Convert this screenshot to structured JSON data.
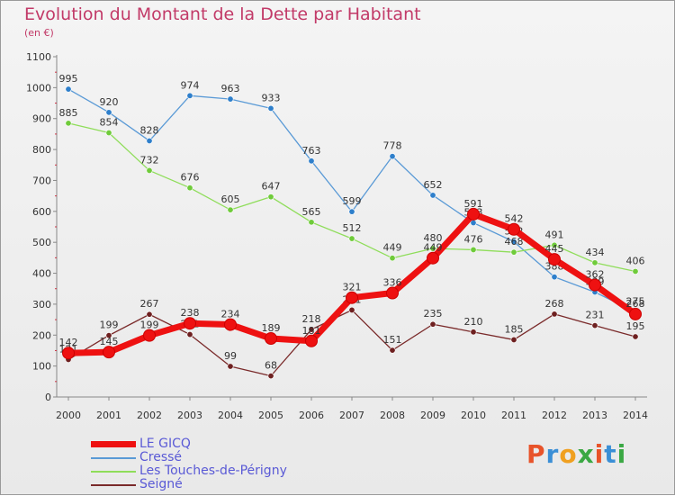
{
  "header": {
    "title": "Evolution du Montant de la Dette par Habitant",
    "unit": "(en €)"
  },
  "brand": {
    "logo_text": "Proxiti",
    "letter_colors": [
      "#e8532a",
      "#3b8fd6",
      "#f0a020",
      "#3aa843",
      "#e8532a",
      "#3b8fd6",
      "#3aa843"
    ]
  },
  "chart_data": {
    "type": "line",
    "title": "Evolution du Montant de la Dette par Habitant",
    "ylabel": "(en €)",
    "x": [
      "2000",
      "2001",
      "2002",
      "2003",
      "2004",
      "2005",
      "2006",
      "2007",
      "2008",
      "2009",
      "2010",
      "2011",
      "2012",
      "2013",
      "2014"
    ],
    "ylim": [
      0,
      1100
    ],
    "yticks": [
      0,
      100,
      200,
      300,
      400,
      500,
      600,
      700,
      800,
      900,
      1000,
      1100
    ],
    "grid": false,
    "legend_position": "bottom-left",
    "series": [
      {
        "name": "Cressé",
        "color": "#5a9ad6",
        "marker": "#2e7fcb",
        "values": [
          995,
          920,
          828,
          974,
          963,
          933,
          763,
          599,
          778,
          652,
          563,
          502,
          388,
          339,
          275
        ],
        "labels": [
          995,
          920,
          828,
          974,
          963,
          933,
          763,
          599,
          778,
          652,
          563,
          502,
          388,
          339,
          275
        ]
      },
      {
        "name": "Les Touches-de-Périgny",
        "color": "#8fdd5a",
        "marker": "#6fcb3a",
        "values": [
          885,
          854,
          732,
          676,
          605,
          647,
          565,
          512,
          449,
          480,
          476,
          468,
          491,
          434,
          406
        ],
        "labels": [
          885,
          854,
          732,
          676,
          605,
          647,
          565,
          512,
          449,
          480,
          476,
          468,
          491,
          434,
          406
        ]
      },
      {
        "name": "Seigné",
        "color": "#7a2a2a",
        "marker": "#6e2020",
        "values": [
          121,
          199,
          267,
          202,
          99,
          68,
          218,
          281,
          151,
          235,
          210,
          185,
          268,
          231,
          195
        ],
        "labels": [
          121,
          199,
          267,
          202,
          99,
          68,
          218,
          281,
          151,
          235,
          210,
          185,
          268,
          231,
          195
        ]
      },
      {
        "name": "LE GICQ",
        "color": "#ee1111",
        "marker": "#ee1111",
        "values": [
          142,
          145,
          199,
          238,
          234,
          189,
          181,
          321,
          336,
          449,
          591,
          542,
          445,
          362,
          268
        ],
        "labels": [
          142,
          145,
          199,
          238,
          234,
          189,
          181,
          321,
          336,
          449,
          591,
          542,
          445,
          362,
          268
        ]
      }
    ]
  }
}
